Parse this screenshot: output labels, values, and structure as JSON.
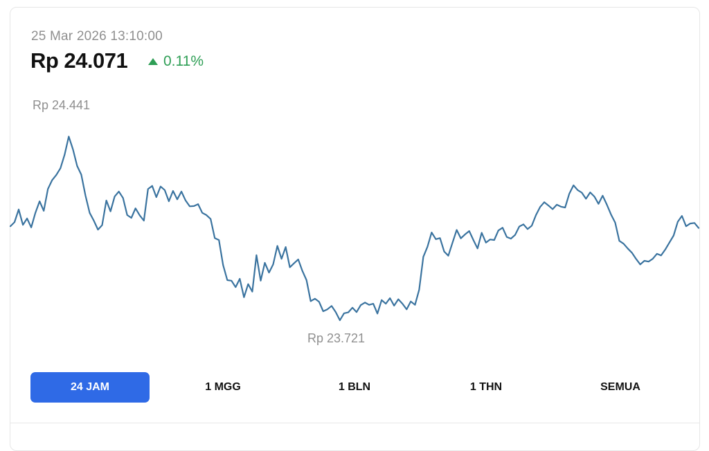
{
  "header": {
    "timestamp": "25 Mar 2026 13:10:00",
    "price": "Rp 24.071",
    "change": "0.11%",
    "change_direction": "up",
    "change_icon": "triangle-up-icon"
  },
  "colors": {
    "line": "#3a739f",
    "positive": "#2e9e55",
    "active_tab": "#2f6ae6",
    "muted_text": "#8f8f8f"
  },
  "tabs": [
    {
      "label": "24 JAM",
      "active": true
    },
    {
      "label": "1 MGG",
      "active": false
    },
    {
      "label": "1 BLN",
      "active": false
    },
    {
      "label": "1 THN",
      "active": false
    },
    {
      "label": "SEMUA",
      "active": false
    }
  ],
  "chart_data": {
    "type": "line",
    "title": "",
    "xlabel": "",
    "ylabel": "",
    "grid": false,
    "max_label": "Rp 24.441",
    "min_label": "Rp 23.721",
    "ylim": [
      23721,
      24441
    ],
    "series": [
      {
        "values": [
          24056,
          24071,
          24116,
          24061,
          24084,
          24052,
          24104,
          24145,
          24111,
          24189,
          24220,
          24239,
          24263,
          24311,
          24376,
          24330,
          24271,
          24240,
          24166,
          24104,
          24076,
          24044,
          24060,
          24148,
          24109,
          24162,
          24180,
          24157,
          24096,
          24086,
          24120,
          24095,
          24076,
          24189,
          24200,
          24160,
          24198,
          24185,
          24145,
          24182,
          24152,
          24180,
          24148,
          24127,
          24128,
          24135,
          24104,
          24096,
          24082,
          24014,
          24007,
          23918,
          23864,
          23862,
          23839,
          23869,
          23803,
          23850,
          23823,
          23953,
          23862,
          23926,
          23891,
          23920,
          23986,
          23940,
          23982,
          23910,
          23924,
          23938,
          23897,
          23864,
          23789,
          23798,
          23787,
          23753,
          23760,
          23772,
          23750,
          23721,
          23746,
          23749,
          23766,
          23750,
          23775,
          23784,
          23776,
          23780,
          23745,
          23793,
          23780,
          23800,
          23773,
          23796,
          23780,
          23760,
          23788,
          23776,
          23830,
          23947,
          23983,
          24034,
          24010,
          24014,
          23966,
          23951,
          23998,
          24043,
          24013,
          24027,
          24039,
          24007,
          23977,
          24033,
          23998,
          24009,
          24007,
          24041,
          24051,
          24018,
          24012,
          24025,
          24055,
          24063,
          24046,
          24058,
          24096,
          24125,
          24142,
          24130,
          24117,
          24133,
          24126,
          24123,
          24172,
          24202,
          24185,
          24176,
          24154,
          24177,
          24162,
          24136,
          24165,
          24133,
          24098,
          24069,
          24004,
          23994,
          23977,
          23962,
          23940,
          23920,
          23933,
          23930,
          23940,
          23958,
          23952,
          23973,
          23998,
          24023,
          24072,
          24093,
          24056,
          24066,
          24068,
          24050
        ]
      }
    ]
  }
}
